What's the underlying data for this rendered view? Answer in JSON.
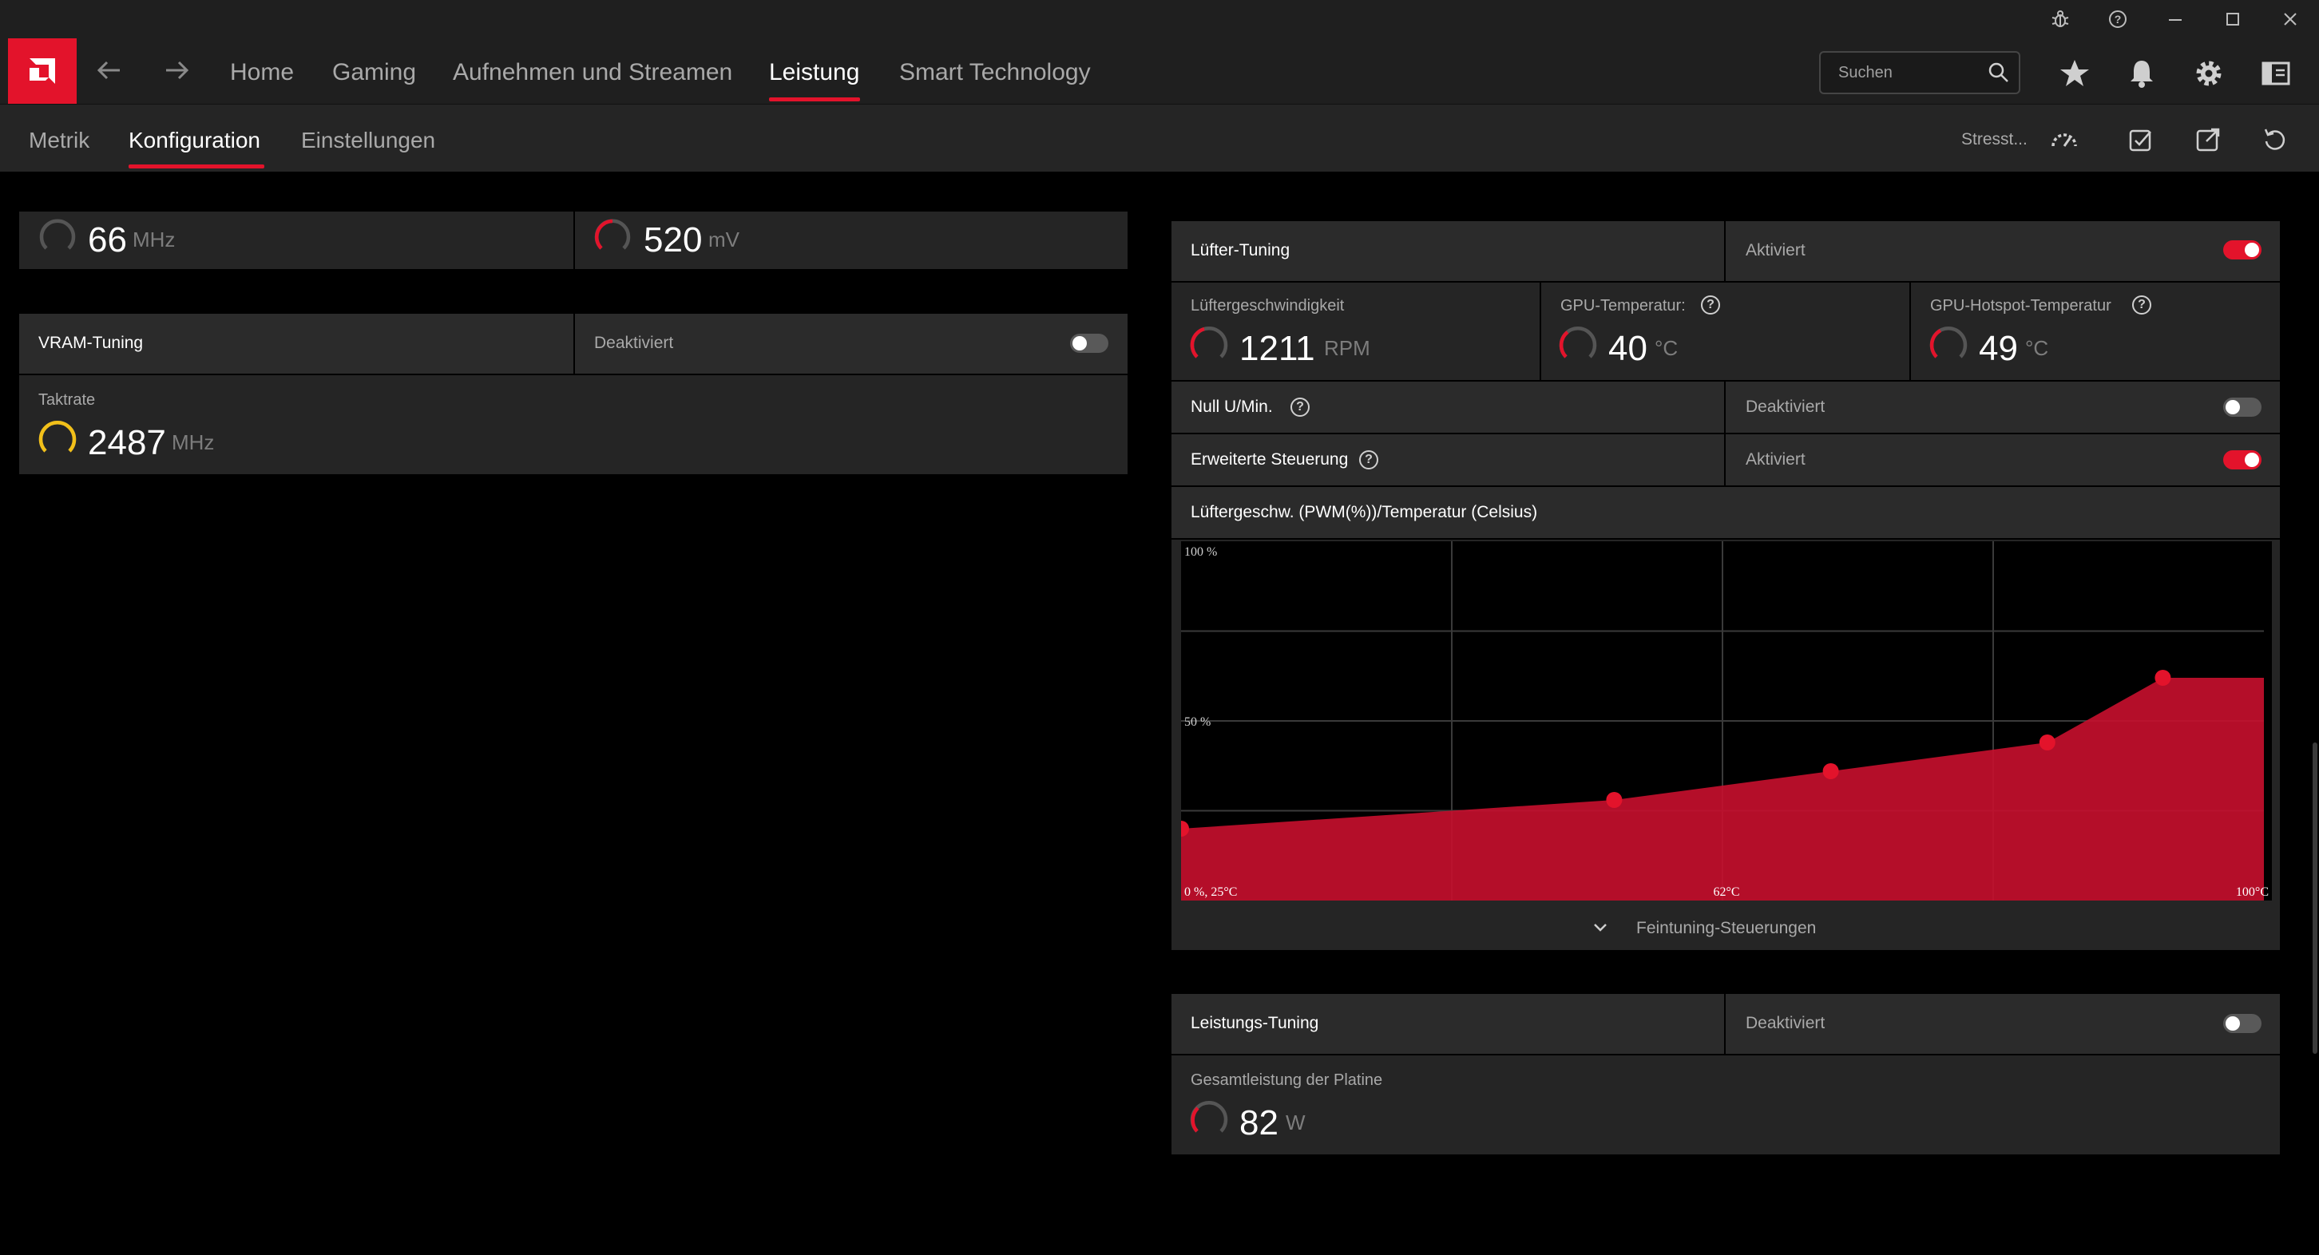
{
  "window": {
    "controls": [
      "bug-icon",
      "help-icon",
      "minimize-icon",
      "maximize-icon",
      "close-icon"
    ]
  },
  "nav": {
    "items": [
      {
        "label": "Home"
      },
      {
        "label": "Gaming"
      },
      {
        "label": "Aufnehmen und Streamen"
      },
      {
        "label": "Leistung"
      },
      {
        "label": "Smart Technology"
      }
    ],
    "active": "Leistung",
    "search_placeholder": "Suchen"
  },
  "subnav": {
    "tabs": [
      {
        "label": "Metrik"
      },
      {
        "label": "Konfiguration"
      },
      {
        "label": "Einstellungen"
      }
    ],
    "active": "Konfiguration",
    "stress_label": "Stresst..."
  },
  "left": {
    "top_row": {
      "value1": "66",
      "unit1": "MHz",
      "value2": "520",
      "unit2": "mV"
    },
    "vram": {
      "title": "VRAM-Tuning",
      "status": "Deaktiviert",
      "enabled": false,
      "clock_label": "Taktrate",
      "clock_value": "2487",
      "clock_unit": "MHz"
    }
  },
  "fan": {
    "title": "Lüfter-Tuning",
    "status": "Aktiviert",
    "enabled": true,
    "speed_label": "Lüftergeschwindigkeit",
    "speed_value": "1211",
    "speed_unit": "RPM",
    "gpu_temp_label": "GPU-Temperatur:",
    "gpu_temp_value": "40",
    "gpu_temp_unit": "°C",
    "hotspot_label": "GPU-Hotspot-Temperatur",
    "hotspot_value": "49",
    "hotspot_unit": "°C",
    "zero_rpm_label": "Null U/Min.",
    "zero_rpm_status": "Deaktiviert",
    "zero_rpm_enabled": false,
    "advanced_label": "Erweiterte Steuerung",
    "advanced_status": "Aktiviert",
    "advanced_enabled": true,
    "curve_title": "Lüftergeschw. (PWM(%))/Temperatur (Celsius)",
    "fine_tune_label": "Feintuning-Steuerungen"
  },
  "chart_data": {
    "type": "area",
    "x": [
      25,
      55,
      70,
      85,
      93
    ],
    "y": [
      20,
      28,
      36,
      44,
      62
    ],
    "xlim": [
      25,
      100
    ],
    "ylim": [
      0,
      100
    ],
    "tick_labels": {
      "top": "100 %",
      "mid": "50 %",
      "origin": "0 %, 25°C",
      "x_mid": "62°C",
      "x_max": "100°C"
    },
    "grid": true,
    "color": "#c8102e"
  },
  "power": {
    "title": "Leistungs-Tuning",
    "status": "Deaktiviert",
    "enabled": false,
    "board_label": "Gesamtleistung der Platine",
    "board_value": "82",
    "board_unit": "W"
  }
}
